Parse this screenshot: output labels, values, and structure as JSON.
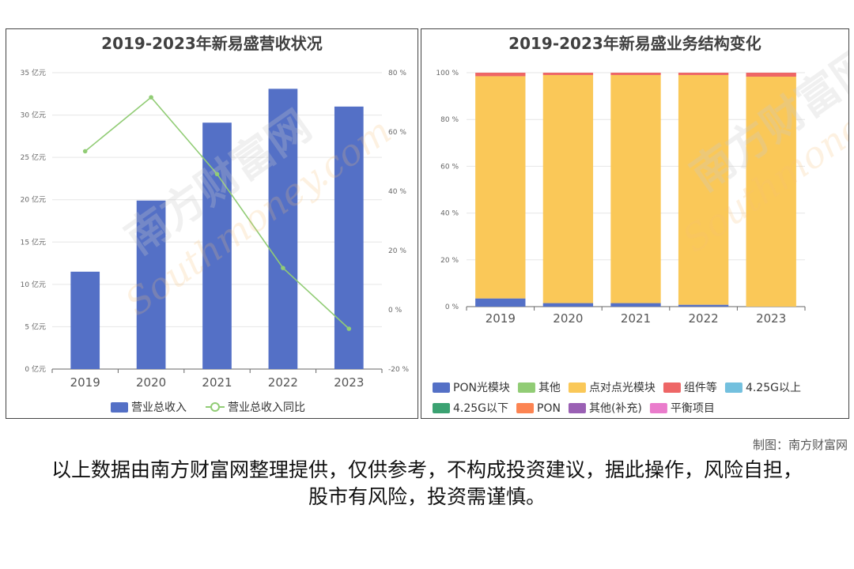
{
  "chart_data": [
    {
      "type": "bar",
      "title": "2019-2023年新易盛营收状况",
      "categories": [
        "2019",
        "2020",
        "2021",
        "2022",
        "2023"
      ],
      "series": [
        {
          "name": "营业总收入",
          "type": "bar",
          "axis": "left",
          "values": [
            11.5,
            19.9,
            29.1,
            33.1,
            31.0
          ],
          "color": "#5470c6"
        },
        {
          "name": "营业总收入同比",
          "type": "line",
          "axis": "right",
          "values": [
            53.5,
            71.7,
            45.8,
            14.1,
            -6.4
          ],
          "color": "#91cc75"
        }
      ],
      "y_left": {
        "min": 0,
        "max": 35,
        "step": 5,
        "unit": "亿元",
        "ticks": [
          "0 亿元",
          "5 亿元",
          "10 亿元",
          "15 亿元",
          "20 亿元",
          "25 亿元",
          "30 亿元",
          "35 亿元"
        ]
      },
      "y_right": {
        "min": -20,
        "max": 80,
        "step": 20,
        "unit": "%",
        "ticks": [
          "-20 %",
          "0 %",
          "20 %",
          "40 %",
          "60 %",
          "80 %"
        ]
      },
      "legend": [
        {
          "label": "营业总收入",
          "color": "#5470c6",
          "shape": "bar"
        },
        {
          "label": "营业总收入同比",
          "color": "#91cc75",
          "shape": "line"
        }
      ],
      "legend_position": "bottom-center",
      "grid": true
    },
    {
      "type": "bar",
      "stacked": true,
      "title": "2019-2023年新易盛业务结构变化",
      "categories": [
        "2019",
        "2020",
        "2021",
        "2022",
        "2023"
      ],
      "series": [
        {
          "name": "PON光模块",
          "color": "#5470c6",
          "values": [
            3.5,
            1.5,
            1.5,
            0.8,
            0
          ]
        },
        {
          "name": "点对点光模块",
          "color": "#fac858",
          "values": [
            95,
            97.5,
            97.5,
            98.2,
            98.3
          ]
        },
        {
          "name": "组件等",
          "color": "#ee6666",
          "values": [
            1.5,
            1.0,
            1.0,
            1.0,
            1.7
          ]
        }
      ],
      "y": {
        "min": 0,
        "max": 100,
        "step": 20,
        "ticks": [
          "0 %",
          "20 %",
          "40 %",
          "60 %",
          "80 %",
          "100 %"
        ]
      },
      "legend": [
        {
          "label": "PON光模块",
          "color": "#5470c6"
        },
        {
          "label": "其他",
          "color": "#91cc75"
        },
        {
          "label": "点对点光模块",
          "color": "#fac858"
        },
        {
          "label": "组件等",
          "color": "#ee6666"
        },
        {
          "label": "4.25G以上",
          "color": "#73c0de"
        },
        {
          "label": "4.25G以下",
          "color": "#3ba272"
        },
        {
          "label": "PON",
          "color": "#fc8452"
        },
        {
          "label": "其他(补充)",
          "color": "#9a60b4"
        },
        {
          "label": "平衡项目",
          "color": "#ea7ccc"
        }
      ],
      "legend_position": "bottom",
      "grid": true
    }
  ],
  "watermark": {
    "text": "南方财富网",
    "latin": "Southmoney.com"
  },
  "credit": "制图：南方财富网",
  "disclaimer": "以上数据由南方财富网整理提供，仅供参考，不构成投资建议，据此操作，风险自担，股市有风险，投资需谨慎。"
}
